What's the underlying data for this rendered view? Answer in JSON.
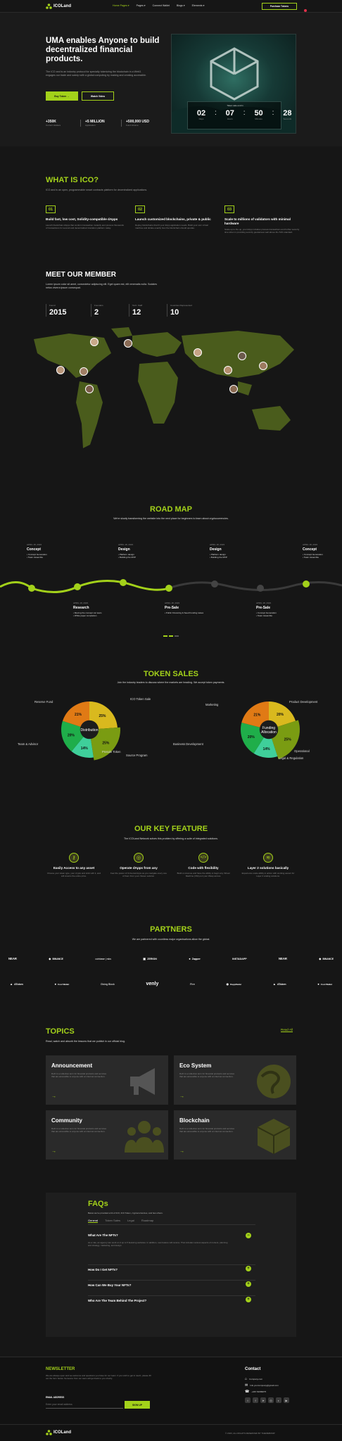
{
  "brand": {
    "name": "ICOLand"
  },
  "nav": {
    "items": [
      "Home Pages",
      "Pages",
      "Connect Wallet",
      "Blogs",
      "Elements"
    ],
    "cta": "Purchase Tokens"
  },
  "hero": {
    "title": "UMA enables Anyone to build decentralized financial products.",
    "desc": "The ICO and is an industry protocol for specialty tokenizing the blockchain in a Web3. engages our trade and sweep with a global computing by making and creating accessible.",
    "btn_primary": "Buy Token",
    "btn_secondary": "Watch Video",
    "stats": [
      {
        "value": "+350K",
        "label": "Current Holders"
      },
      {
        "value": "+5 MILLION",
        "label": "Application"
      },
      {
        "value": "+500,000 USD",
        "label": "Fund Volume"
      }
    ],
    "countdown_label": "Token sale end in",
    "countdown": [
      {
        "v": "02",
        "l": "Days"
      },
      {
        "v": "07",
        "l": "Hours"
      },
      {
        "v": "50",
        "l": "Minutes"
      },
      {
        "v": "28",
        "l": "Seconds"
      }
    ]
  },
  "ico": {
    "title": "WHAT IS ICO?",
    "subtitle": "ICO and is an open, programmable smart contracts platform for decentralized applications.",
    "items": [
      {
        "num": "01",
        "title": "Build fast, low cost, Solidity-compatible dApps",
        "desc": "Launch blockchain dApps that conform transaction instantly and process thousands of transactions for second and decentralized insulation platform today."
      },
      {
        "num": "02",
        "title": "Launch customized blockchains, private & public",
        "desc": "Deploy blockchains that fit your dApp application needs. Build your own virtual machine and dictate exactly how the blockchain should operate."
      },
      {
        "num": "03",
        "title": "Scale to millions of validators with minimal hardware",
        "desc": "Scale up to the up, your dApp includes process transactions and further security time when in providing security guarantees well above the 51% standard."
      }
    ]
  },
  "members": {
    "title": "MEET OUR MEMBER",
    "desc": "Lorem ipsum color sit amet, consectetur adipiscing elit. Eget quam est, elit venenatis nulla. Sodales netus viverra ipsum consequat.",
    "stats": [
      {
        "label": "Found",
        "value": "2015"
      },
      {
        "label": "Founders",
        "value": "2"
      },
      {
        "label": "Tech. Staff",
        "value": "12"
      },
      {
        "label": "Countries Represented",
        "value": "10"
      }
    ]
  },
  "roadmap": {
    "title": "ROAD MAP",
    "subtitle": "We're slowly transforming the website into the next place for beginners to learn about cryptocurrencies.",
    "top": [
      {
        "date": "APRIL 18, 2023",
        "title": "Concept",
        "items": [
          "Concept Generation",
          "Team Assemble"
        ]
      },
      {
        "date": "APRIL 18, 2023",
        "title": "Design",
        "items": [
          "Platform design",
          "Building the MVP"
        ]
      },
      {
        "date": "APRIL 18, 2023",
        "title": "Design",
        "items": [
          "Platform design",
          "Building the MVP"
        ]
      },
      {
        "date": "APRIL 18, 2023",
        "title": "Concept",
        "items": [
          "Concept Generation",
          "Team Assemble"
        ]
      }
    ],
    "bottom": [
      {
        "date": "APRIL 18, 2023",
        "title": "Research",
        "items": [
          "Moving the concept car team",
          "White paper completion"
        ]
      },
      {
        "date": "APRIL 18, 2023",
        "title": "Pre-Sale",
        "items": [
          "Public Financing & Seed Funding raises"
        ]
      },
      {
        "date": "APRIL 18, 2023",
        "title": "Pre-Sale",
        "items": [
          "Concept Generation",
          "Team Assemble"
        ]
      }
    ]
  },
  "token": {
    "title": "TOKEN SALES",
    "subtitle": "Join the industry leaders to discuss where the markets are heading. We accept token payments.",
    "pie1": {
      "center": "Distribution",
      "labels": [
        "Reserve Fund",
        "ICO Token Sale",
        "Team & Advisor",
        "Source Program",
        "Presale Token"
      ],
      "slices": [
        {
          "label": "Reserve Fund",
          "value": 25,
          "color": "#d9b91e"
        },
        {
          "label": "ICO Token Sale",
          "value": 25,
          "color": "#7a9c12"
        },
        {
          "label": "Source Program",
          "value": 14,
          "color": "#3fcf9a"
        },
        {
          "label": "Presale Token",
          "value": 20,
          "color": "#1fae4a"
        },
        {
          "label": "Team & Advisor",
          "value": 21,
          "color": "#e07a15"
        }
      ]
    },
    "pie2": {
      "center": "Funding Allocation",
      "labels": [
        "Marketing",
        "Product Development",
        "Business Development",
        "Operational",
        "Legal & Regulation"
      ],
      "slices": [
        {
          "label": "Marketing",
          "value": 20,
          "color": "#d9b91e"
        },
        {
          "label": "Product Development",
          "value": 25,
          "color": "#7a9c12"
        },
        {
          "label": "Operational",
          "value": 14,
          "color": "#3fcf9a"
        },
        {
          "label": "Legal & Regulation",
          "value": 20,
          "color": "#1fae4a"
        },
        {
          "label": "Business Development",
          "value": 21,
          "color": "#e07a15"
        }
      ]
    }
  },
  "features": {
    "title": "OUR KEY FEATURE",
    "subtitle": "The ICOLand  Network solves this problem by offering a suite of integrated solutions.",
    "items": [
      {
        "title": "Easily Access to any asset",
        "desc": "Choose your token type, your crypto and stick with it, and will crowns the entire price."
      },
      {
        "title": "Operate dApps from any",
        "desc": "Feel the power of Universal Apps as you navigate every one of them from your chosen solution."
      },
      {
        "title": "Code with flexibility",
        "desc": "Build on Avenue and have the ability to begin any Virtual Machine (VM) port your Wasp across."
      },
      {
        "title": "Layer 2 solutions basically",
        "desc": "Experience scale ability in action with working ascent for Layer 2 scaling solutions."
      }
    ]
  },
  "partners": {
    "title": "PARTNERS",
    "subtitle": "We are partnered with countless major organisations allow the global.",
    "row1": [
      "NEAR",
      "BINANCE",
      "coinbase | rsks",
      "ZERION",
      "Zapper",
      "INSTADAPP",
      "NEAR",
      "BINANCE"
    ],
    "row2": [
      "ATuken",
      "Cool Wallet",
      "Giving Block",
      "venly",
      "Fire",
      "DappRadar",
      "ATuken",
      "Cool Wallet"
    ]
  },
  "topics": {
    "title": "TOPICS",
    "subtitle": "Read, watch and absorb the lessons that we publish in our official blog.",
    "read_all": "Read All",
    "cards": [
      {
        "title": "Announcement",
        "desc": "DeFi is a collective term for financial products and services that are accessible to anyone with an internet connection.",
        "icon": "megaphone-icon"
      },
      {
        "title": "Eco System",
        "desc": "DeFi is a collective term for financial products and services that are accessible to anyone with an internet connection.",
        "icon": "globe-icon"
      },
      {
        "title": "Community",
        "desc": "DeFi is a collective term for financial products and services that are accessible to anyone with an internet connection.",
        "icon": "users-icon"
      },
      {
        "title": "Blockchain",
        "desc": "DeFi is a collective term for financial products and services that are accessible to anyone with an internet connection.",
        "icon": "cube-icon"
      }
    ]
  },
  "faq": {
    "title": "FAQs",
    "subtitle": "Below we've provided a bit of ICO, ICO Token, cryptocurrencies, and few others.",
    "tabs": [
      "General",
      "Token Sales",
      "Legal",
      "Roadmap"
    ],
    "items": [
      {
        "q": "What Are The NFTs?",
        "a": "As a rule, an agency can work on 4 up to 5 featuring websites. In addition, new feature will receive. That includes various aspects of content, planning and strategy, marketing, and design."
      },
      {
        "q": "How Do I Get NFTs?"
      },
      {
        "q": "How Can We Buy Your NFTs?"
      },
      {
        "q": "Who Are The Team Behind The Project?"
      }
    ]
  },
  "footer": {
    "newsletter_title": "NEWSLETTER",
    "newsletter_desc": "We are always open and we welcome and questions you have for our team. If you wish to get in touch, please fill out the form below. Someone from our team will get back to you shortly.",
    "email_label": "EMAIL ADDRESS",
    "email_placeholder": "Enter your email address",
    "signup": "SIGN UP",
    "contact_title": "Contact",
    "contacts": [
      "Company.com",
      "Info.yourcompany@gmail.com",
      "+345 54689875"
    ],
    "copyright": "© 2023, ALL RIGHTS RESERVED BY THEMEBUMP"
  },
  "colors": {
    "accent": "#a3d11a",
    "bg": "#161616"
  }
}
